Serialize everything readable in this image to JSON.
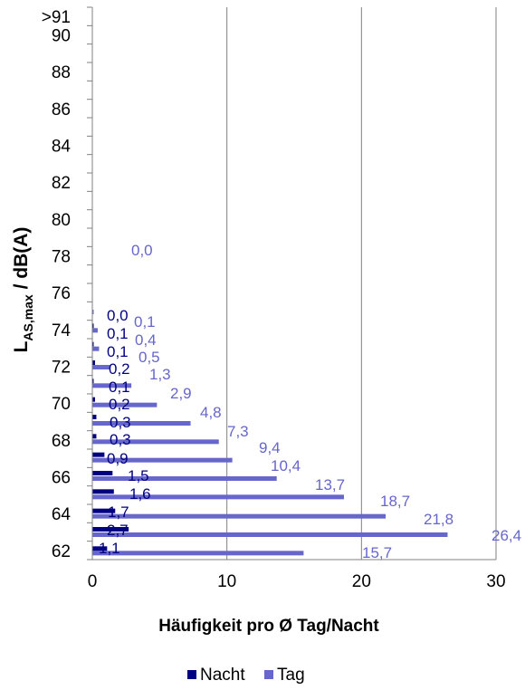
{
  "chart_data": {
    "type": "bar",
    "orientation": "horizontal",
    "categories": [
      "62",
      "63",
      "64",
      "65",
      "66",
      "67",
      "68",
      "69",
      "70",
      "71",
      "72",
      "73",
      "74",
      "75",
      "76",
      "77",
      "78",
      "79",
      "80",
      "81",
      "82",
      "83",
      "84",
      "85",
      "86",
      "87",
      "88",
      "89",
      "90",
      ">91"
    ],
    "y_tick_labels": [
      "62",
      "64",
      "66",
      "68",
      "70",
      "72",
      "74",
      "76",
      "78",
      "80",
      "82",
      "84",
      "86",
      "88",
      "90",
      ">91"
    ],
    "series": [
      {
        "name": "Nacht",
        "color": "#000080",
        "values": [
          1.1,
          2.7,
          1.7,
          1.6,
          1.5,
          0.9,
          0.3,
          0.3,
          0.2,
          0.1,
          0.2,
          0.1,
          0.1,
          0.0,
          null,
          null,
          null,
          null,
          null,
          null,
          null,
          null,
          null,
          null,
          null,
          null,
          null,
          null,
          null,
          null
        ],
        "labels": [
          "1,1",
          "2,7",
          "1,7",
          "1,6",
          "1,5",
          "0,9",
          "0,3",
          "0,3",
          "0,2",
          "0,1",
          "0,2",
          "0,1",
          "0,1",
          "0,0",
          "",
          "",
          "",
          "",
          "",
          "",
          "",
          "",
          "",
          "",
          "",
          "",
          "",
          "",
          "",
          ""
        ]
      },
      {
        "name": "Tag",
        "color": "#6666cc",
        "values": [
          15.7,
          26.4,
          21.8,
          18.7,
          13.7,
          10.4,
          9.4,
          7.3,
          4.8,
          2.9,
          1.3,
          0.5,
          0.4,
          0.1,
          null,
          null,
          0.0,
          null,
          null,
          null,
          null,
          null,
          null,
          null,
          null,
          null,
          null,
          null,
          null,
          null
        ],
        "labels": [
          "15,7",
          "26,4",
          "21,8",
          "18,7",
          "13,7",
          "10,4",
          "9,4",
          "7,3",
          "4,8",
          "2,9",
          "1,3",
          "0,5",
          "0,4",
          "0,1",
          "",
          "",
          "0,0",
          "",
          "",
          "",
          "",
          "",
          "",
          "",
          "",
          "",
          "",
          "",
          "",
          ""
        ]
      }
    ],
    "xlim": [
      0,
      30
    ],
    "x_ticks": [
      "0",
      "10",
      "20",
      "30"
    ],
    "xlabel": "Häufigkeit pro Ø Tag/Nacht",
    "ylabel": {
      "main": "L",
      "sub": "AS,max",
      "rest": " / dB(A)"
    },
    "grid": "vertical",
    "legend_position": "bottom"
  }
}
